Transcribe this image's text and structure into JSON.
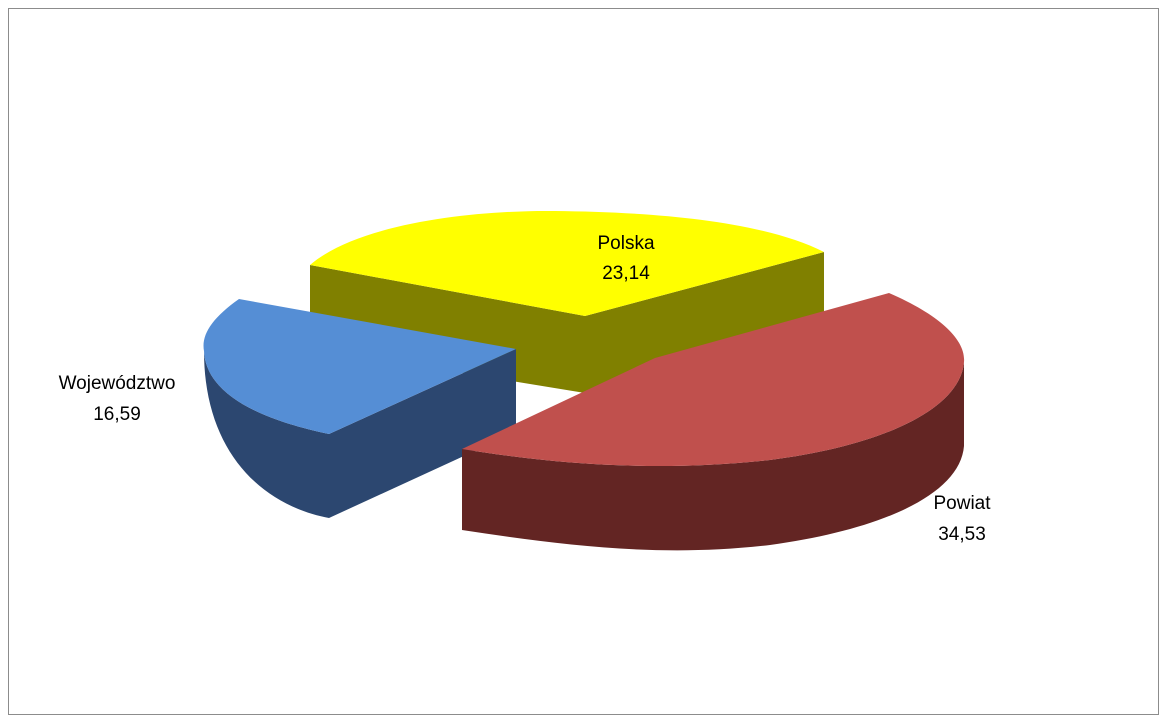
{
  "chart_data": {
    "type": "pie",
    "style": "3d-exploded",
    "title": "",
    "legend": "none",
    "slices": [
      {
        "label": "Polska",
        "value": 23.14,
        "display_value": "23,14",
        "color": "#ffff00",
        "side_color": "#808000"
      },
      {
        "label": "Powiat",
        "value": 34.53,
        "display_value": "34,53",
        "color": "#c0504d",
        "side_color": "#632523"
      },
      {
        "label": "Województwo",
        "value": 16.59,
        "display_value": "16,59",
        "color": "#558ed5",
        "side_color": "#2c4770"
      }
    ]
  }
}
